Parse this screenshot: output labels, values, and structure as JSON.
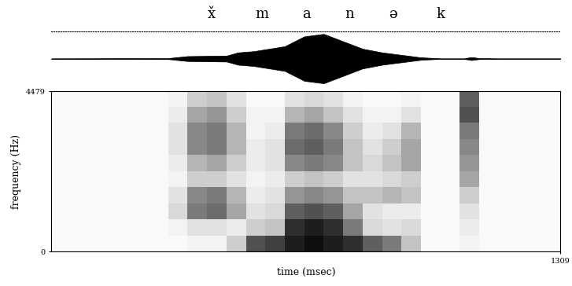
{
  "chart_data": {
    "type": "spectrogram",
    "segments": [
      {
        "label": "x̌",
        "time": 411
      },
      {
        "label": "m",
        "time": 542
      },
      {
        "label": "a",
        "time": 655
      },
      {
        "label": "n",
        "time": 767
      },
      {
        "label": "ə",
        "time": 879
      },
      {
        "label": "k",
        "time": 1000
      }
    ],
    "xlabel": "time (msec)",
    "ylabel": "frequency (Hz)",
    "xlim": [
      0,
      1309
    ],
    "xticks": [
      1309
    ],
    "ylim": [
      0,
      4479
    ],
    "yticks": [
      0,
      4479
    ],
    "color": "#000000",
    "waveform": {
      "time": [
        0,
        300,
        350,
        450,
        480,
        520,
        600,
        650,
        700,
        750,
        800,
        850,
        900,
        950,
        1000,
        1060,
        1080,
        1100,
        1150,
        1309
      ],
      "amplitude": [
        0.01,
        0.02,
        0.1,
        0.12,
        0.25,
        0.3,
        0.5,
        0.9,
        1.0,
        0.7,
        0.4,
        0.25,
        0.15,
        0.05,
        0.01,
        0.01,
        0.06,
        0.02,
        0.01,
        0.01
      ],
      "ylim": [
        -1.1,
        1.1
      ]
    },
    "time_edges": [
      0,
      50,
      100,
      150,
      200,
      250,
      300,
      350,
      400,
      450,
      500,
      550,
      600,
      650,
      700,
      750,
      800,
      850,
      900,
      950,
      1000,
      1050,
      1100,
      1150,
      1200,
      1250,
      1309
    ],
    "freq_edges": [
      0,
      450,
      900,
      1350,
      1800,
      2250,
      2700,
      3150,
      3600,
      4050,
      4479
    ],
    "color_range": [
      0,
      1
    ],
    "cells": [
      [
        0.05,
        0.05,
        0.05,
        0.05,
        0.05,
        0.05,
        0.05,
        0.05,
        0.05,
        0.05
      ],
      [
        0.05,
        0.05,
        0.05,
        0.05,
        0.05,
        0.05,
        0.05,
        0.05,
        0.05,
        0.05
      ],
      [
        0.05,
        0.05,
        0.05,
        0.05,
        0.05,
        0.05,
        0.05,
        0.05,
        0.05,
        0.05
      ],
      [
        0.05,
        0.05,
        0.05,
        0.05,
        0.05,
        0.05,
        0.05,
        0.05,
        0.05,
        0.05
      ],
      [
        0.05,
        0.05,
        0.05,
        0.05,
        0.05,
        0.05,
        0.05,
        0.05,
        0.05,
        0.05
      ],
      [
        0.05,
        0.05,
        0.05,
        0.05,
        0.05,
        0.05,
        0.05,
        0.05,
        0.05,
        0.05
      ],
      [
        0.05,
        0.1,
        0.25,
        0.2,
        0.1,
        0.15,
        0.2,
        0.2,
        0.15,
        0.1
      ],
      [
        0.1,
        0.2,
        0.6,
        0.55,
        0.3,
        0.4,
        0.55,
        0.55,
        0.45,
        0.3
      ],
      [
        0.1,
        0.2,
        0.65,
        0.6,
        0.3,
        0.45,
        0.6,
        0.6,
        0.5,
        0.35
      ],
      [
        0.3,
        0.15,
        0.45,
        0.4,
        0.2,
        0.3,
        0.4,
        0.4,
        0.3,
        0.2
      ],
      [
        0.75,
        0.3,
        0.2,
        0.15,
        0.1,
        0.15,
        0.15,
        0.1,
        0.1,
        0.05
      ],
      [
        0.8,
        0.35,
        0.25,
        0.2,
        0.15,
        0.2,
        0.2,
        0.15,
        0.1,
        0.05
      ],
      [
        0.9,
        0.85,
        0.7,
        0.5,
        0.3,
        0.55,
        0.65,
        0.6,
        0.4,
        0.2
      ],
      [
        0.95,
        0.9,
        0.75,
        0.55,
        0.35,
        0.6,
        0.7,
        0.65,
        0.45,
        0.25
      ],
      [
        0.9,
        0.85,
        0.7,
        0.5,
        0.3,
        0.55,
        0.6,
        0.55,
        0.35,
        0.2
      ],
      [
        0.85,
        0.6,
        0.45,
        0.35,
        0.2,
        0.35,
        0.35,
        0.3,
        0.2,
        0.1
      ],
      [
        0.7,
        0.25,
        0.2,
        0.35,
        0.2,
        0.25,
        0.2,
        0.15,
        0.1,
        0.05
      ],
      [
        0.6,
        0.2,
        0.15,
        0.4,
        0.25,
        0.35,
        0.3,
        0.2,
        0.1,
        0.05
      ],
      [
        0.35,
        0.25,
        0.15,
        0.35,
        0.3,
        0.45,
        0.45,
        0.4,
        0.2,
        0.1
      ],
      [
        0.05,
        0.05,
        0.05,
        0.05,
        0.05,
        0.05,
        0.05,
        0.05,
        0.05,
        0.05
      ],
      [
        0.05,
        0.05,
        0.05,
        0.05,
        0.05,
        0.05,
        0.05,
        0.05,
        0.05,
        0.05
      ],
      [
        0.1,
        0.15,
        0.2,
        0.3,
        0.45,
        0.5,
        0.55,
        0.6,
        0.75,
        0.7
      ],
      [
        0.05,
        0.05,
        0.05,
        0.05,
        0.05,
        0.05,
        0.05,
        0.05,
        0.05,
        0.05
      ],
      [
        0.05,
        0.05,
        0.05,
        0.05,
        0.05,
        0.05,
        0.05,
        0.05,
        0.05,
        0.05
      ],
      [
        0.05,
        0.05,
        0.05,
        0.05,
        0.05,
        0.05,
        0.05,
        0.05,
        0.05,
        0.05
      ],
      [
        0.05,
        0.05,
        0.05,
        0.05,
        0.05,
        0.05,
        0.05,
        0.05,
        0.05,
        0.05
      ]
    ]
  }
}
